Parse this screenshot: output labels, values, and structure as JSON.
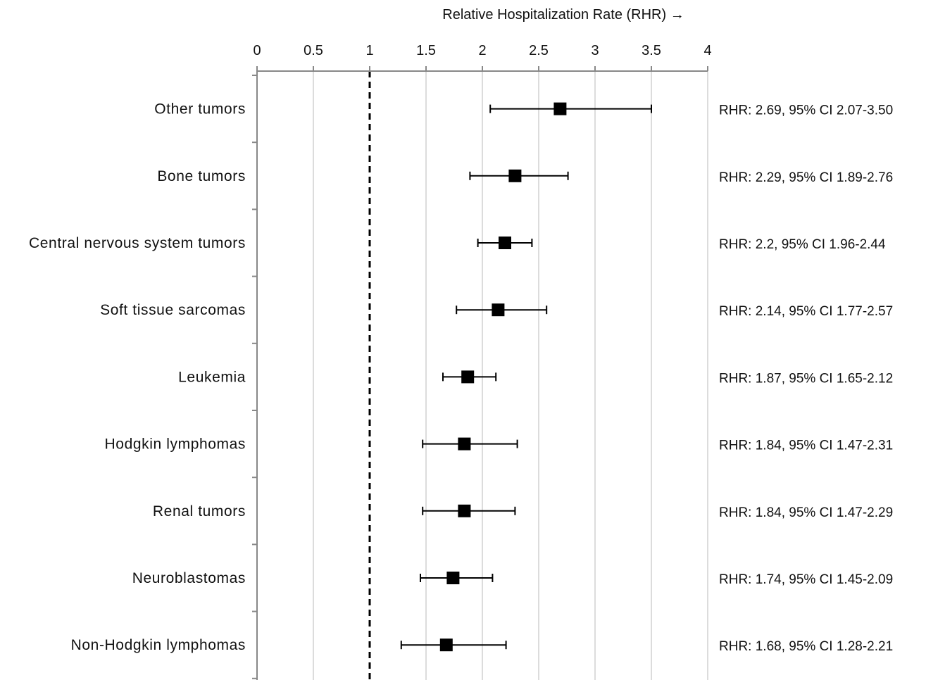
{
  "chart_data": {
    "type": "forest",
    "xlabel": "Relative Hospitalization Rate (RHR) →",
    "xlim": [
      0,
      4
    ],
    "xticks": [
      0,
      0.5,
      1,
      1.5,
      2,
      2.5,
      3,
      3.5,
      4
    ],
    "tick_labels": [
      "0",
      "0.5",
      "1",
      "1.5",
      "2",
      "2.5",
      "3",
      "3.5",
      "4"
    ],
    "axis_position": "top",
    "grid": true,
    "reference_line": 1,
    "colors": {
      "marker": "#000000",
      "grid": "#d0d0d0",
      "axis": "#888888"
    },
    "rows": [
      {
        "label": "Other tumors",
        "value": 2.69,
        "lower": 2.07,
        "upper": 3.5,
        "annotation": "RHR: 2.69, 95% CI 2.07-3.50"
      },
      {
        "label": "Bone tumors",
        "value": 2.29,
        "lower": 1.89,
        "upper": 2.76,
        "annotation": "RHR: 2.29, 95% CI 1.89-2.76"
      },
      {
        "label": "Central nervous system tumors",
        "value": 2.2,
        "lower": 1.96,
        "upper": 2.44,
        "annotation": "RHR: 2.2, 95% CI 1.96-2.44"
      },
      {
        "label": "Soft tissue sarcomas",
        "value": 2.14,
        "lower": 1.77,
        "upper": 2.57,
        "annotation": "RHR: 2.14, 95% CI 1.77-2.57"
      },
      {
        "label": "Leukemia",
        "value": 1.87,
        "lower": 1.65,
        "upper": 2.12,
        "annotation": "RHR: 1.87, 95% CI 1.65-2.12"
      },
      {
        "label": "Hodgkin lymphomas",
        "value": 1.84,
        "lower": 1.47,
        "upper": 2.31,
        "annotation": "RHR: 1.84, 95% CI 1.47-2.31"
      },
      {
        "label": "Renal tumors",
        "value": 1.84,
        "lower": 1.47,
        "upper": 2.29,
        "annotation": "RHR: 1.84, 95% CI 1.47-2.29"
      },
      {
        "label": "Neuroblastomas",
        "value": 1.74,
        "lower": 1.45,
        "upper": 2.09,
        "annotation": "RHR: 1.74, 95% CI 1.45-2.09"
      },
      {
        "label": "Non-Hodgkin lymphomas",
        "value": 1.68,
        "lower": 1.28,
        "upper": 2.21,
        "annotation": "RHR: 1.68, 95% CI 1.28-2.21"
      }
    ]
  }
}
